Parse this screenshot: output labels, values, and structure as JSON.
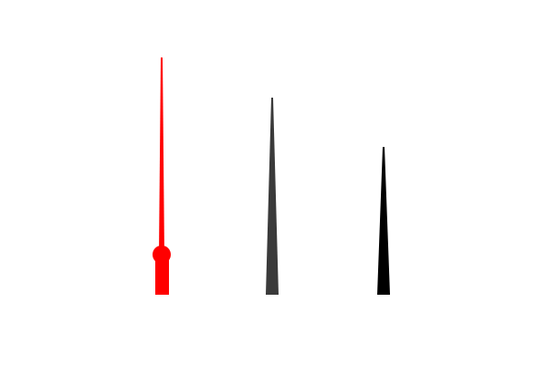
{
  "hands": [
    {
      "name": "second-hand",
      "color": "#ff0000",
      "has_counterweight_dot": true
    },
    {
      "name": "minute-hand",
      "color": "#3a3a3a",
      "has_counterweight_dot": false
    },
    {
      "name": "hour-hand",
      "color": "#000000",
      "has_counterweight_dot": false
    }
  ]
}
